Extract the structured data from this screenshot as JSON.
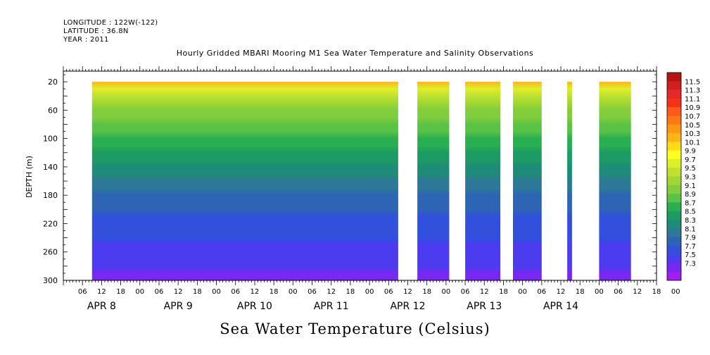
{
  "header": {
    "longitude": "LONGITUDE : 122W(-122)",
    "latitude": "LATITUDE : 36.8N",
    "year": "YEAR : 2011"
  },
  "chart_data": {
    "type": "heatmap",
    "title": "Hourly Gridded MBARI Mooring M1 Sea Water Temperature and Salinity Observations",
    "xlabel": "Sea Water Temperature (Celsius)",
    "ylabel": "DEPTH (m)",
    "y_ticks": [
      20,
      60,
      100,
      140,
      180,
      220,
      260,
      300
    ],
    "ylim": [
      300,
      5
    ],
    "x_hour_ticks": [
      "06",
      "12",
      "18",
      "00",
      "06",
      "12",
      "18",
      "00",
      "06",
      "12",
      "18",
      "00",
      "06",
      "12",
      "18",
      "00",
      "06",
      "12",
      "18",
      "00",
      "06",
      "12",
      "18",
      "00",
      "06",
      "12",
      "18",
      "00",
      "06",
      "12",
      "18",
      "00"
    ],
    "x_day_labels": [
      "APR  8",
      "APR  9",
      "APR 10",
      "APR 11",
      "APR 12",
      "APR 13",
      "APR 14"
    ],
    "x_range_hours": [
      0,
      186
    ],
    "data_segments_hours": [
      [
        9,
        105
      ],
      [
        111,
        121
      ],
      [
        126,
        137
      ],
      [
        141,
        150
      ],
      [
        158,
        159.5
      ],
      [
        168,
        178
      ]
    ],
    "colorbar": {
      "levels": [
        "11.5",
        "11.3",
        "11.1",
        "10.9",
        "10.7",
        "10.5",
        "10.3",
        "10.1",
        "9.9",
        "9.7",
        "9.5",
        "9.3",
        "9.1",
        "8.9",
        "8.7",
        "8.5",
        "8.3",
        "8.1",
        "7.9",
        "7.7",
        "7.5",
        "7.3"
      ],
      "colors": [
        "#b41414",
        "#d21e1e",
        "#e62828",
        "#f53219",
        "#ff5a1e",
        "#ff7814",
        "#ff9614",
        "#ffb414",
        "#ffdc14",
        "#ffff1e",
        "#dcf028",
        "#bee132",
        "#a0d732",
        "#82cd3c",
        "#5ac346",
        "#28af50",
        "#1e9b64",
        "#1e8c78",
        "#2d7896",
        "#2d64b4",
        "#3250dc",
        "#4b3cf0",
        "#7828f0",
        "#a01ef0"
      ]
    },
    "depth_profile": [
      {
        "depth": 20,
        "temp": 10.2
      },
      {
        "depth": 30,
        "temp": 9.6
      },
      {
        "depth": 60,
        "temp": 9.1
      },
      {
        "depth": 100,
        "temp": 8.8
      },
      {
        "depth": 140,
        "temp": 8.4
      },
      {
        "depth": 180,
        "temp": 8.0
      },
      {
        "depth": 220,
        "temp": 7.8
      },
      {
        "depth": 260,
        "temp": 7.6
      },
      {
        "depth": 300,
        "temp": 7.4
      }
    ]
  }
}
